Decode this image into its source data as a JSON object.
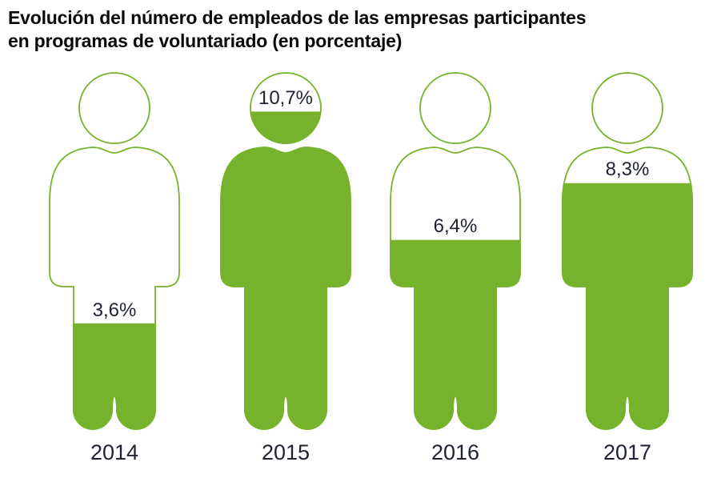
{
  "title": "Evolución del número de empleados de las empresas participantes\nen programas de voluntariado (en porcentaje)",
  "colors": {
    "fill_green": "#76B22B",
    "outline_green": "#76B22B",
    "text_dark": "#1E2232",
    "title_color": "#0A0A0A",
    "background": "#FFFFFF"
  },
  "chart_data": {
    "type": "pictogram",
    "title": "Evolución del número de empleados de las empresas participantes en programas de voluntariado (en porcentaje)",
    "description": "Four person-shaped icons, each filled with green from the bottom in proportion to the percentage value for that year",
    "categories": [
      "2014",
      "2015",
      "2016",
      "2017"
    ],
    "values": [
      3.6,
      10.7,
      6.4,
      8.3
    ],
    "value_labels": [
      "3,6%",
      "10,7%",
      "6,4%",
      "8,3%"
    ],
    "unit": "%",
    "scale_max": 12,
    "legend": "none",
    "grid": false
  }
}
